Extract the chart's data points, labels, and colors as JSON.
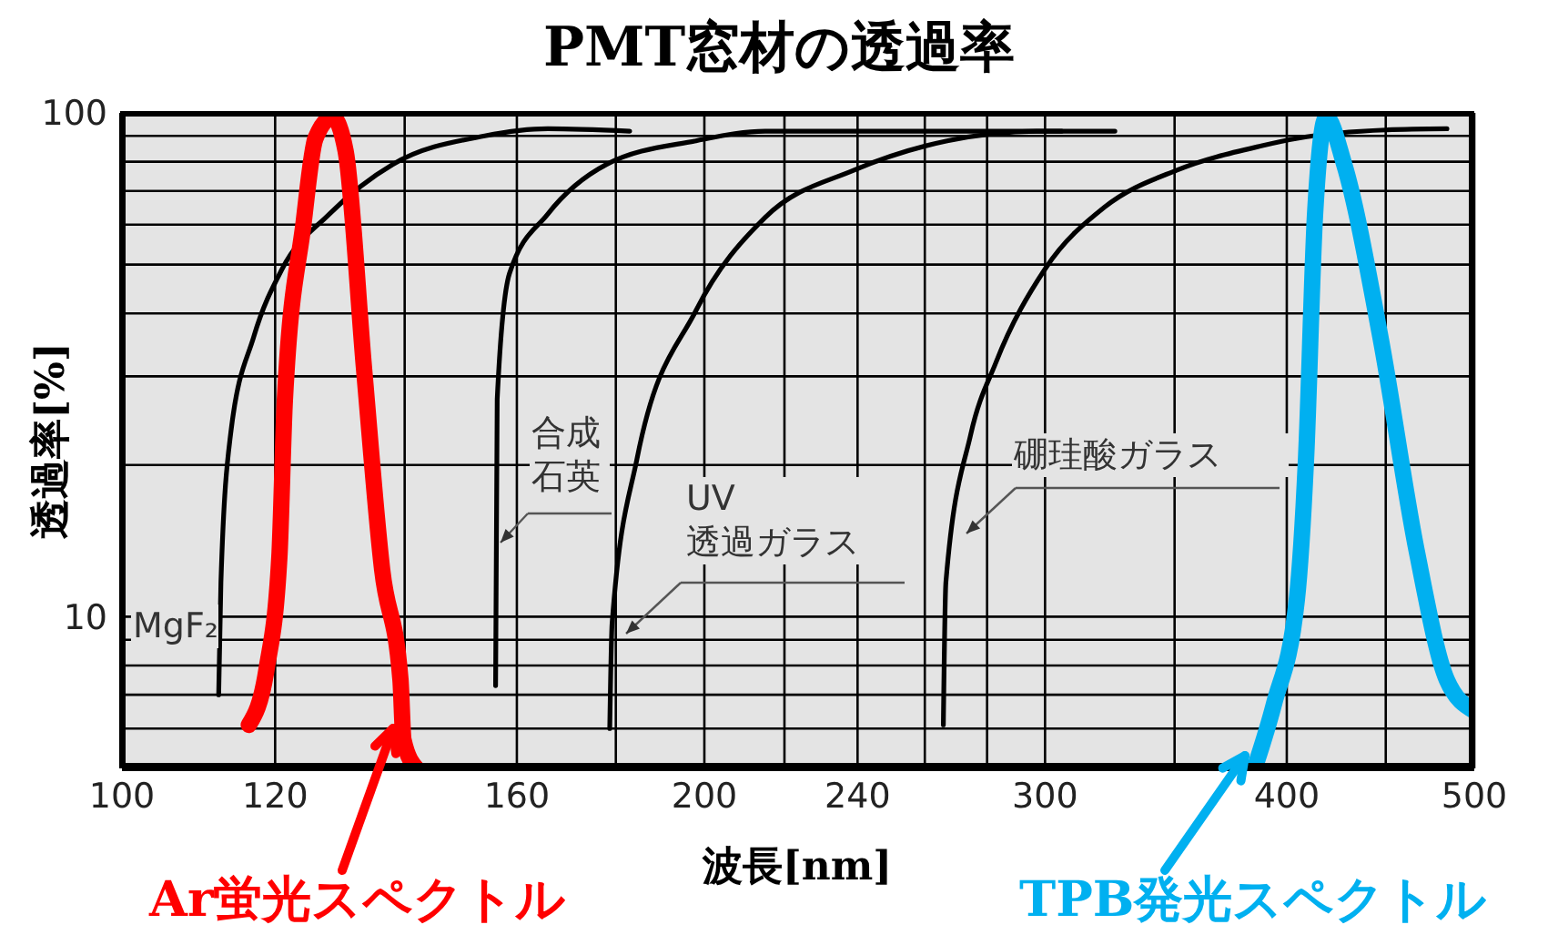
{
  "chart_data": {
    "type": "line",
    "title": "PMT窓材の透過率",
    "xlabel": "波長[nm]",
    "ylabel": "透過率[%]",
    "log": "xy",
    "grid": true,
    "legend": false,
    "marker": "none",
    "line_style": "solid",
    "xlim": [
      100,
      500
    ],
    "ylim": [
      5,
      100
    ],
    "xticks": [
      100,
      120,
      {
        "value": 140,
        "label": null
      },
      160,
      {
        "value": 180,
        "label": null
      },
      200,
      {
        "value": 220,
        "label": null
      },
      240,
      {
        "value": 260,
        "label": null
      },
      {
        "value": 280,
        "label": null
      },
      300,
      {
        "value": 350,
        "label": null
      },
      400,
      {
        "value": 450,
        "label": null
      },
      500
    ],
    "yticks": [
      {
        "value": 6,
        "label": null
      },
      {
        "value": 7,
        "label": null
      },
      {
        "value": 8,
        "label": null
      },
      {
        "value": 9,
        "label": null
      },
      10,
      {
        "value": 20,
        "label": null
      },
      {
        "value": 30,
        "label": null
      },
      {
        "value": 40,
        "label": null
      },
      {
        "value": 50,
        "label": null
      },
      {
        "value": 60,
        "label": null
      },
      {
        "value": 70,
        "label": null
      },
      {
        "value": 80,
        "label": null
      },
      {
        "value": 90,
        "label": null
      },
      100
    ],
    "series": [
      {
        "name": "MgF₂",
        "color": "#000000",
        "x": [
          112.2,
          112.5,
          113.8,
          117,
          121,
          128,
          138,
          154,
          166,
          183
        ],
        "values": [
          7,
          11.7,
          23,
          36,
          49,
          63,
          79,
          90,
          93,
          92
        ]
      },
      {
        "name": "合成石英",
        "color": "#000000",
        "x": [
          156,
          156.3,
          158.6,
          166,
          178,
          198,
          215,
          306
        ],
        "values": [
          7.3,
          27,
          48,
          63,
          79,
          88,
          92,
          92
        ]
      },
      {
        "name": "UV\n透過ガラス",
        "color": "#000000",
        "x": [
          178.7,
          179.2,
          184.6,
          198,
          215,
          239,
          267,
          297,
          326
        ],
        "values": [
          6,
          9.7,
          20.6,
          40.5,
          62,
          77,
          88,
          92,
          92
        ]
      },
      {
        "name": "硼珪酸ガラス",
        "color": "#000000",
        "x": [
          265.8,
          266.6,
          274.6,
          283,
          300,
          322,
          351,
          388,
          405,
          450,
          484
        ],
        "values": [
          6.1,
          11.7,
          23,
          32,
          49,
          65,
          77,
          86,
          89,
          92.5,
          93
        ]
      },
      {
        "name": "Ar蛍光スペクトル",
        "color": "#ff0000",
        "x": [
          116.3,
          118.8,
          120.6,
          121.4,
          124.1,
          125.9,
          128.5,
          130.5,
          133.4,
          136.3,
          139.3,
          139.8,
          142
        ],
        "values": [
          6.1,
          7.9,
          13.1,
          27,
          60,
          89,
          98,
          84,
          31,
          12.4,
          7.5,
          5.7,
          5
        ]
      },
      {
        "name": "TPB発光スペクトル",
        "color": "#00b0f0",
        "x": [
          385.6,
          393.9,
          404.8,
          409.3,
          413.7,
          419.2,
          428.3,
          447.1,
          466.9,
          483.9,
          500
        ],
        "values": [
          5.1,
          6.7,
          10.8,
          20.7,
          63,
          98,
          79,
          36,
          13.5,
          7.5,
          6.5
        ]
      }
    ]
  }
}
